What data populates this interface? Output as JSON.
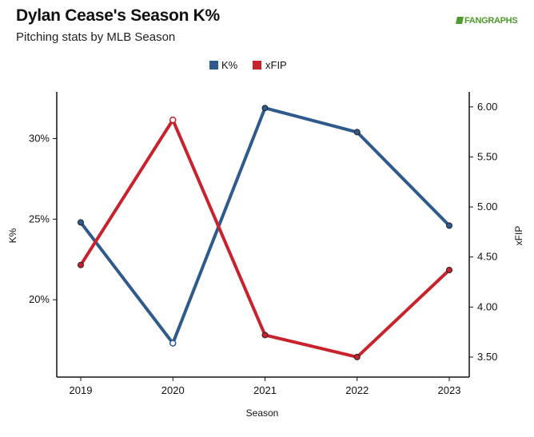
{
  "header": {
    "title": "Dylan Cease's Season K%",
    "subtitle": "Pitching stats by MLB Season",
    "logo_text": "FANGRAPHS"
  },
  "chart_data": {
    "type": "line",
    "title": "Dylan Cease's Season K%",
    "subtitle": "Pitching stats by MLB Season",
    "xlabel": "Season",
    "ylabel_left": "K%",
    "ylabel_right": "xFIP",
    "categories": [
      "2019",
      "2020",
      "2021",
      "2022",
      "2023"
    ],
    "series": [
      {
        "name": "K%",
        "axis": "left",
        "color": "#2f5a8c",
        "values": [
          24.8,
          17.3,
          31.9,
          30.4,
          24.6
        ],
        "hollow_points": [
          1
        ]
      },
      {
        "name": "xFIP",
        "axis": "right",
        "color": "#c8232c",
        "values": [
          4.42,
          5.87,
          3.72,
          3.5,
          4.37
        ],
        "hollow_points": [
          1
        ]
      }
    ],
    "yleft": {
      "min": 15.2,
      "max": 32.9,
      "ticks": [
        20,
        25,
        30
      ],
      "tick_labels": [
        "20%",
        "25%",
        "30%"
      ]
    },
    "yright": {
      "min": 3.3,
      "max": 6.15,
      "ticks": [
        3.5,
        4.0,
        4.5,
        5.0,
        5.5,
        6.0
      ],
      "tick_labels": [
        "3.50",
        "4.00",
        "4.50",
        "5.00",
        "5.50",
        "6.00"
      ]
    },
    "legend": {
      "placement": "top-center"
    },
    "grid": false
  }
}
